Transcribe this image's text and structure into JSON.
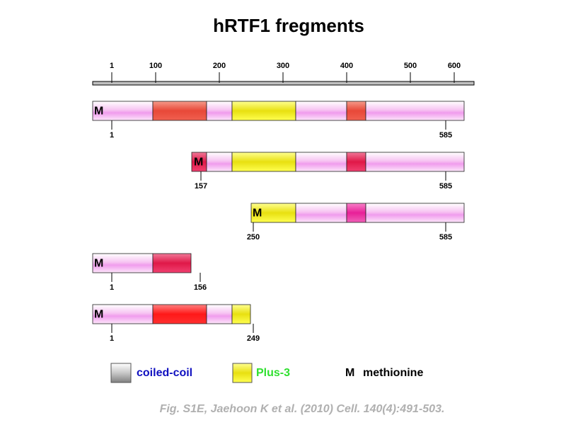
{
  "title": "hRTF1 fregments",
  "scale": {
    "ticks": [
      "1",
      "100",
      "200",
      "300",
      "400",
      "500",
      "600"
    ]
  },
  "fragments": [
    {
      "marker": "M",
      "start": "1",
      "end": "585"
    },
    {
      "marker": "M",
      "start": "157",
      "end": "585"
    },
    {
      "marker": "M",
      "start": "250",
      "end": "585"
    },
    {
      "marker": "M",
      "start": "1",
      "end": "156"
    },
    {
      "marker": "M",
      "start": "1",
      "end": "249"
    }
  ],
  "legend": {
    "coiled_coil": "coiled-coil",
    "plus3": "Plus-3",
    "methionine_symbol": "M",
    "methionine": "methionine"
  },
  "caption": "Fig. S1E, Jaehoon K et al. (2010) Cell. 140(4):491-503."
}
